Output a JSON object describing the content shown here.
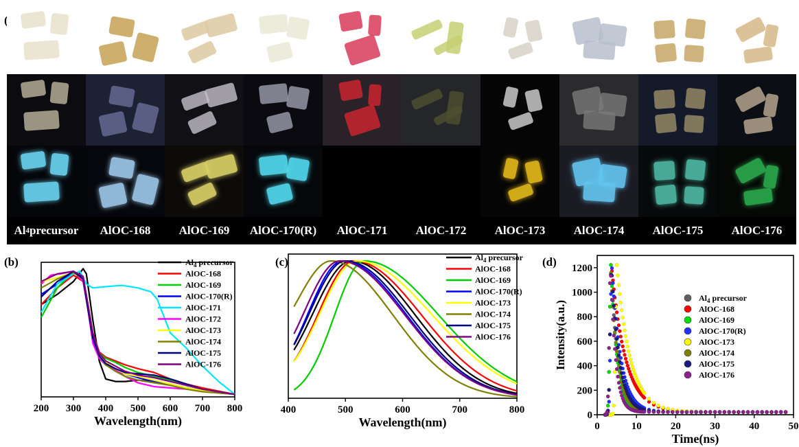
{
  "panel_a": {
    "label": "(a)",
    "samples": [
      {
        "name": "Al4 precursor",
        "day": "#e7e0cc",
        "dark": "#bfb7a0",
        "uv": "#6ad4f0",
        "top_bg": "#ffffff",
        "dark_bg": "#0b0b10",
        "uv_bg": "#05060a"
      },
      {
        "name": "AlOC-168",
        "day": "#c7a155",
        "dark": "#6a6e9a",
        "uv": "#9cc7e8",
        "top_bg": "#ffffff",
        "dark_bg": "#1c2233",
        "uv_bg": "#06070c"
      },
      {
        "name": "AlOC-169",
        "day": "#dcc9a0",
        "dark": "#c4c0cc",
        "uv": "#d9d067",
        "top_bg": "#ffffff",
        "dark_bg": "#101015",
        "uv_bg": "#0d0a0a"
      },
      {
        "name": "AlOC-170(R)",
        "day": "#eae7d6",
        "dark": "#9ca0ae",
        "uv": "#53d9ee",
        "top_bg": "#ffffff",
        "dark_bg": "#0a0a10",
        "uv_bg": "#05070a"
      },
      {
        "name": "AlOC-171",
        "day": "#d83a5b",
        "dark": "#d4262e",
        "uv": "#000000",
        "top_bg": "#ffffff",
        "dark_bg": "#2a2228",
        "uv_bg": "#000000"
      },
      {
        "name": "AlOC-172",
        "day": "#c5cf72",
        "dark": "#4d5030",
        "uv": "#000000",
        "top_bg": "#ffffff",
        "dark_bg": "#25262a",
        "uv_bg": "#000000"
      },
      {
        "name": "AlOC-173",
        "day": "#d7d2c6",
        "dark": "#d6d6d6",
        "uv": "#e2b91a",
        "top_bg": "#ffffff",
        "dark_bg": "#050505",
        "uv_bg": "#060505"
      },
      {
        "name": "AlOC-174",
        "day": "#b8c0cc",
        "dark": "#7a7a7a",
        "uv": "#63c5ef",
        "top_bg": "#ffffff",
        "dark_bg": "#2b2b2e",
        "uv_bg": "#1b1b24"
      },
      {
        "name": "AlOC-175",
        "day": "#c7a665",
        "dark": "#9c8e6a",
        "uv": "#4fb7a3",
        "top_bg": "#ffffff",
        "dark_bg": "#141a2a",
        "uv_bg": "#070a0a"
      },
      {
        "name": "AlOC-176",
        "day": "#d6b786",
        "dark": "#bfae96",
        "uv": "#2ba84d",
        "top_bg": "#ffffff",
        "dark_bg": "#0c0e16",
        "uv_bg": "#060806"
      }
    ]
  },
  "chart_data": [
    {
      "panel": "(b)",
      "type": "line",
      "xlabel": "Wavelength(nm)",
      "ylabel": "",
      "xlim": [
        200,
        800
      ],
      "xticks": [
        200,
        300,
        400,
        500,
        600,
        700,
        800
      ],
      "ylim": [
        0,
        1.05
      ],
      "legend": "top-right",
      "series": [
        {
          "name": "Al4 precursor",
          "color": "#000000",
          "x": [
            200,
            250,
            300,
            315,
            330,
            340,
            360,
            380,
            400,
            430,
            460,
            500,
            550,
            600,
            650,
            700,
            800
          ],
          "y": [
            0.72,
            0.8,
            0.9,
            0.95,
            1.0,
            0.96,
            0.6,
            0.28,
            0.14,
            0.12,
            0.12,
            0.13,
            0.12,
            0.1,
            0.07,
            0.05,
            0.02
          ]
        },
        {
          "name": "AlOC-168",
          "color": "#ff0000",
          "x": [
            200,
            250,
            300,
            330,
            345,
            360,
            380,
            400,
            430,
            460,
            500,
            550,
            600,
            650,
            700,
            800
          ],
          "y": [
            0.72,
            0.85,
            0.95,
            0.9,
            0.7,
            0.5,
            0.35,
            0.31,
            0.28,
            0.25,
            0.22,
            0.19,
            0.14,
            0.1,
            0.07,
            0.02
          ]
        },
        {
          "name": "AlOC-169",
          "color": "#00cc00",
          "x": [
            200,
            250,
            300,
            330,
            345,
            360,
            380,
            400,
            430,
            460,
            500,
            550,
            600,
            650,
            700,
            800
          ],
          "y": [
            0.62,
            0.85,
            0.98,
            0.93,
            0.72,
            0.48,
            0.34,
            0.3,
            0.27,
            0.23,
            0.19,
            0.16,
            0.13,
            0.09,
            0.06,
            0.02
          ]
        },
        {
          "name": "AlOC-170(R)",
          "color": "#0000ff",
          "x": [
            200,
            250,
            300,
            330,
            345,
            360,
            380,
            400,
            430,
            460,
            500,
            550,
            600,
            650,
            700,
            800
          ],
          "y": [
            0.8,
            0.88,
            0.98,
            0.93,
            0.7,
            0.45,
            0.3,
            0.25,
            0.21,
            0.18,
            0.15,
            0.12,
            0.09,
            0.07,
            0.05,
            0.02
          ]
        },
        {
          "name": "AlOC-171",
          "color": "#00e5ff",
          "x": [
            200,
            250,
            300,
            320,
            340,
            360,
            400,
            450,
            500,
            540,
            560,
            600,
            650,
            700,
            750,
            800
          ],
          "y": [
            0.66,
            0.88,
            0.96,
            0.98,
            0.88,
            0.85,
            0.86,
            0.87,
            0.85,
            0.82,
            0.76,
            0.5,
            0.38,
            0.24,
            0.12,
            0.02
          ]
        },
        {
          "name": "AlOC-172",
          "color": "#ff00ff",
          "x": [
            200,
            230,
            260,
            300,
            330,
            345,
            360,
            380,
            400,
            430,
            460,
            500,
            550,
            600,
            650,
            700,
            800
          ],
          "y": [
            0.88,
            0.95,
            0.96,
            0.98,
            0.9,
            0.68,
            0.42,
            0.3,
            0.25,
            0.21,
            0.16,
            0.11,
            0.08,
            0.07,
            0.06,
            0.05,
            0.02
          ]
        },
        {
          "name": "AlOC-173",
          "color": "#ffff00",
          "x": [
            200,
            250,
            300,
            330,
            345,
            360,
            380,
            400,
            430,
            460,
            500,
            550,
            600,
            650,
            700,
            800
          ],
          "y": [
            0.9,
            0.93,
            0.97,
            0.92,
            0.72,
            0.5,
            0.34,
            0.27,
            0.22,
            0.18,
            0.16,
            0.13,
            0.1,
            0.07,
            0.05,
            0.02
          ]
        },
        {
          "name": "AlOC-174",
          "color": "#808000",
          "x": [
            200,
            250,
            300,
            330,
            345,
            360,
            380,
            400,
            430,
            460,
            500,
            550,
            600,
            650,
            700,
            800
          ],
          "y": [
            0.85,
            0.92,
            0.97,
            0.92,
            0.7,
            0.48,
            0.32,
            0.25,
            0.2,
            0.16,
            0.13,
            0.11,
            0.09,
            0.06,
            0.04,
            0.02
          ]
        },
        {
          "name": "AlOC-175",
          "color": "#000080",
          "x": [
            200,
            250,
            300,
            330,
            345,
            360,
            380,
            400,
            430,
            460,
            500,
            550,
            600,
            650,
            700,
            800
          ],
          "y": [
            0.78,
            0.9,
            0.98,
            0.92,
            0.68,
            0.46,
            0.32,
            0.26,
            0.22,
            0.19,
            0.18,
            0.17,
            0.14,
            0.1,
            0.06,
            0.02
          ]
        },
        {
          "name": "AlOC-176",
          "color": "#800080",
          "x": [
            200,
            250,
            300,
            330,
            345,
            360,
            380,
            400,
            430,
            460,
            500,
            550,
            600,
            650,
            700,
            800
          ],
          "y": [
            0.9,
            0.96,
            0.98,
            0.94,
            0.72,
            0.5,
            0.34,
            0.28,
            0.24,
            0.2,
            0.17,
            0.15,
            0.12,
            0.09,
            0.06,
            0.02
          ]
        }
      ]
    },
    {
      "panel": "(c)",
      "type": "line",
      "xlabel": "Wavelength(nm)",
      "ylabel": "",
      "xlim": [
        400,
        800
      ],
      "xticks": [
        400,
        500,
        600,
        700,
        800
      ],
      "ylim": [
        0,
        1.05
      ],
      "legend": "top-right",
      "series": [
        {
          "name": "Al4 precursor",
          "color": "#000000",
          "peak": 510,
          "left": 66,
          "right": 112,
          "floor": 0.05
        },
        {
          "name": "AlOC-168",
          "color": "#ff0000",
          "peak": 515,
          "left": 62,
          "right": 118,
          "floor": 0.04
        },
        {
          "name": "AlOC-169",
          "color": "#00cc00",
          "peak": 533,
          "left": 52,
          "right": 130,
          "floor": 0.0
        },
        {
          "name": "AlOC-170(R)",
          "color": "#0000ff",
          "peak": 495,
          "left": 60,
          "right": 112,
          "floor": 0.04
        },
        {
          "name": "AlOC-173",
          "color": "#ffff00",
          "peak": 520,
          "left": 64,
          "right": 132,
          "floor": 0.05
        },
        {
          "name": "AlOC-174",
          "color": "#808000",
          "peak": 475,
          "left": 60,
          "right": 108,
          "floor": 0.25
        },
        {
          "name": "AlOC-175",
          "color": "#000080",
          "peak": 500,
          "left": 62,
          "right": 112,
          "floor": 0.06
        },
        {
          "name": "AlOC-176",
          "color": "#800080",
          "peak": 490,
          "left": 62,
          "right": 114,
          "floor": 0.06
        }
      ]
    },
    {
      "panel": "(d)",
      "type": "scatter",
      "xlabel": "Time(ns)",
      "ylabel": "Intensity(a.u.)",
      "xlim": [
        0,
        50
      ],
      "xticks": [
        0,
        10,
        20,
        30,
        40,
        50
      ],
      "ylim": [
        0,
        1300
      ],
      "yticks": [
        0,
        200,
        400,
        600,
        800,
        1000,
        1200
      ],
      "legend": "center-right",
      "series": [
        {
          "name": "Al4 precursor",
          "color": "#606060",
          "peak_t": 3.5,
          "tau": 1.8,
          "peak": 1200
        },
        {
          "name": "AlOC-168",
          "color": "#ff0000",
          "peak_t": 3.6,
          "tau": 3.6,
          "peak": 1200
        },
        {
          "name": "AlOC-169",
          "color": "#00dd00",
          "peak_t": 3.5,
          "tau": 1.6,
          "peak": 1200
        },
        {
          "name": "AlOC-170(R)",
          "color": "#2030ff",
          "peak_t": 3.7,
          "tau": 2.3,
          "peak": 1200
        },
        {
          "name": "AlOC-173",
          "color": "#ffff00",
          "peak_t": 5.0,
          "tau": 3.4,
          "peak": 1200
        },
        {
          "name": "AlOC-174",
          "color": "#808000",
          "peak_t": 3.4,
          "tau": 1.8,
          "peak": 1200
        },
        {
          "name": "AlOC-175",
          "color": "#1a1a80",
          "peak_t": 3.6,
          "tau": 2.0,
          "peak": 1200
        },
        {
          "name": "AlOC-176",
          "color": "#902090",
          "peak_t": 3.4,
          "tau": 1.3,
          "peak": 1200
        }
      ]
    }
  ]
}
